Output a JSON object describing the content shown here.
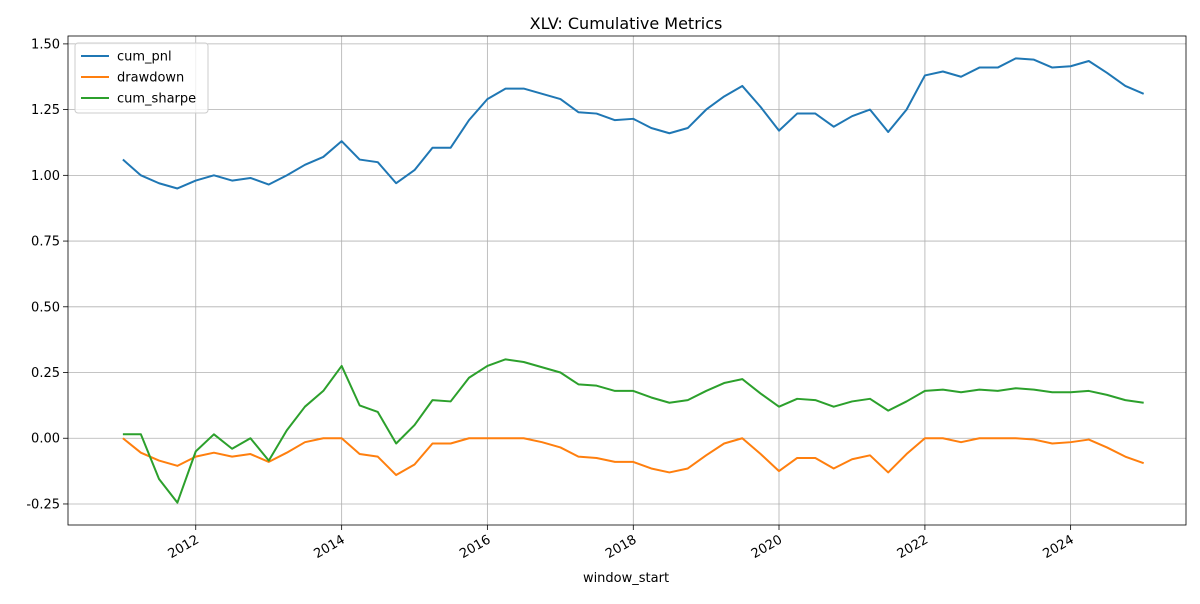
{
  "chart_data": {
    "type": "line",
    "title": "XLV: Cumulative Metrics",
    "xlabel": "window_start",
    "ylabel": "",
    "x_type": "date",
    "xlim": [
      "2010-04-01",
      "2025-08-01"
    ],
    "ylim": [
      -0.33,
      1.53
    ],
    "x_ticks": [
      "2012",
      "2014",
      "2016",
      "2018",
      "2020",
      "2022",
      "2024"
    ],
    "y_ticks": [
      "-0.25",
      "0.00",
      "0.25",
      "0.50",
      "0.75",
      "1.00",
      "1.25",
      "1.50"
    ],
    "grid": true,
    "legend_position": "top-left",
    "x": [
      "2011-01-01",
      "2011-04-01",
      "2011-07-01",
      "2011-10-01",
      "2012-01-01",
      "2012-04-01",
      "2012-07-01",
      "2012-10-01",
      "2013-01-01",
      "2013-04-01",
      "2013-07-01",
      "2013-10-01",
      "2014-01-01",
      "2014-04-01",
      "2014-07-01",
      "2014-10-01",
      "2015-01-01",
      "2015-04-01",
      "2015-07-01",
      "2015-10-01",
      "2016-01-01",
      "2016-04-01",
      "2016-07-01",
      "2016-10-01",
      "2017-01-01",
      "2017-04-01",
      "2017-07-01",
      "2017-10-01",
      "2018-01-01",
      "2018-04-01",
      "2018-07-01",
      "2018-10-01",
      "2019-01-01",
      "2019-04-01",
      "2019-07-01",
      "2019-10-01",
      "2020-01-01",
      "2020-04-01",
      "2020-07-01",
      "2020-10-01",
      "2021-01-01",
      "2021-04-01",
      "2021-07-01",
      "2021-10-01",
      "2022-01-01",
      "2022-04-01",
      "2022-07-01",
      "2022-10-01",
      "2023-01-01",
      "2023-04-01",
      "2023-07-01",
      "2023-10-01",
      "2024-01-01",
      "2024-04-01",
      "2024-07-01",
      "2024-10-01",
      "2025-01-01"
    ],
    "series": [
      {
        "name": "cum_pnl",
        "color": "#1f77b4",
        "values": [
          1.06,
          1.0,
          0.97,
          0.95,
          0.98,
          1.0,
          0.98,
          0.99,
          0.965,
          1.0,
          1.04,
          1.07,
          1.13,
          1.06,
          1.05,
          0.97,
          1.02,
          1.105,
          1.105,
          1.21,
          1.29,
          1.33,
          1.33,
          1.31,
          1.29,
          1.24,
          1.235,
          1.21,
          1.215,
          1.18,
          1.16,
          1.18,
          1.25,
          1.3,
          1.34,
          1.26,
          1.17,
          1.235,
          1.235,
          1.185,
          1.225,
          1.25,
          1.165,
          1.25,
          1.38,
          1.395,
          1.375,
          1.41,
          1.41,
          1.445,
          1.44,
          1.41,
          1.415,
          1.435,
          1.39,
          1.34,
          1.31
        ]
      },
      {
        "name": "drawdown",
        "color": "#ff7f0e",
        "values": [
          0.0,
          -0.055,
          -0.085,
          -0.105,
          -0.07,
          -0.055,
          -0.07,
          -0.06,
          -0.09,
          -0.055,
          -0.015,
          0.0,
          0.0,
          -0.06,
          -0.07,
          -0.14,
          -0.1,
          -0.02,
          -0.02,
          0.0,
          0.0,
          0.0,
          0.0,
          -0.015,
          -0.035,
          -0.07,
          -0.075,
          -0.09,
          -0.09,
          -0.115,
          -0.13,
          -0.115,
          -0.065,
          -0.02,
          0.0,
          -0.06,
          -0.125,
          -0.075,
          -0.075,
          -0.115,
          -0.08,
          -0.065,
          -0.13,
          -0.06,
          0.0,
          0.0,
          -0.015,
          0.0,
          0.0,
          0.0,
          -0.005,
          -0.02,
          -0.015,
          -0.005,
          -0.035,
          -0.07,
          -0.095
        ]
      },
      {
        "name": "cum_sharpe",
        "color": "#2ca02c",
        "values": [
          0.015,
          0.015,
          -0.155,
          -0.245,
          -0.05,
          0.015,
          -0.04,
          0.0,
          -0.085,
          0.03,
          0.12,
          0.18,
          0.275,
          0.125,
          0.1,
          -0.02,
          0.05,
          0.145,
          0.14,
          0.23,
          0.275,
          0.3,
          0.29,
          0.27,
          0.25,
          0.205,
          0.2,
          0.18,
          0.18,
          0.155,
          0.135,
          0.145,
          0.18,
          0.21,
          0.225,
          0.17,
          0.12,
          0.15,
          0.145,
          0.12,
          0.14,
          0.15,
          0.105,
          0.14,
          0.18,
          0.185,
          0.175,
          0.185,
          0.18,
          0.19,
          0.185,
          0.175,
          0.175,
          0.18,
          0.165,
          0.145,
          0.135
        ]
      }
    ]
  }
}
